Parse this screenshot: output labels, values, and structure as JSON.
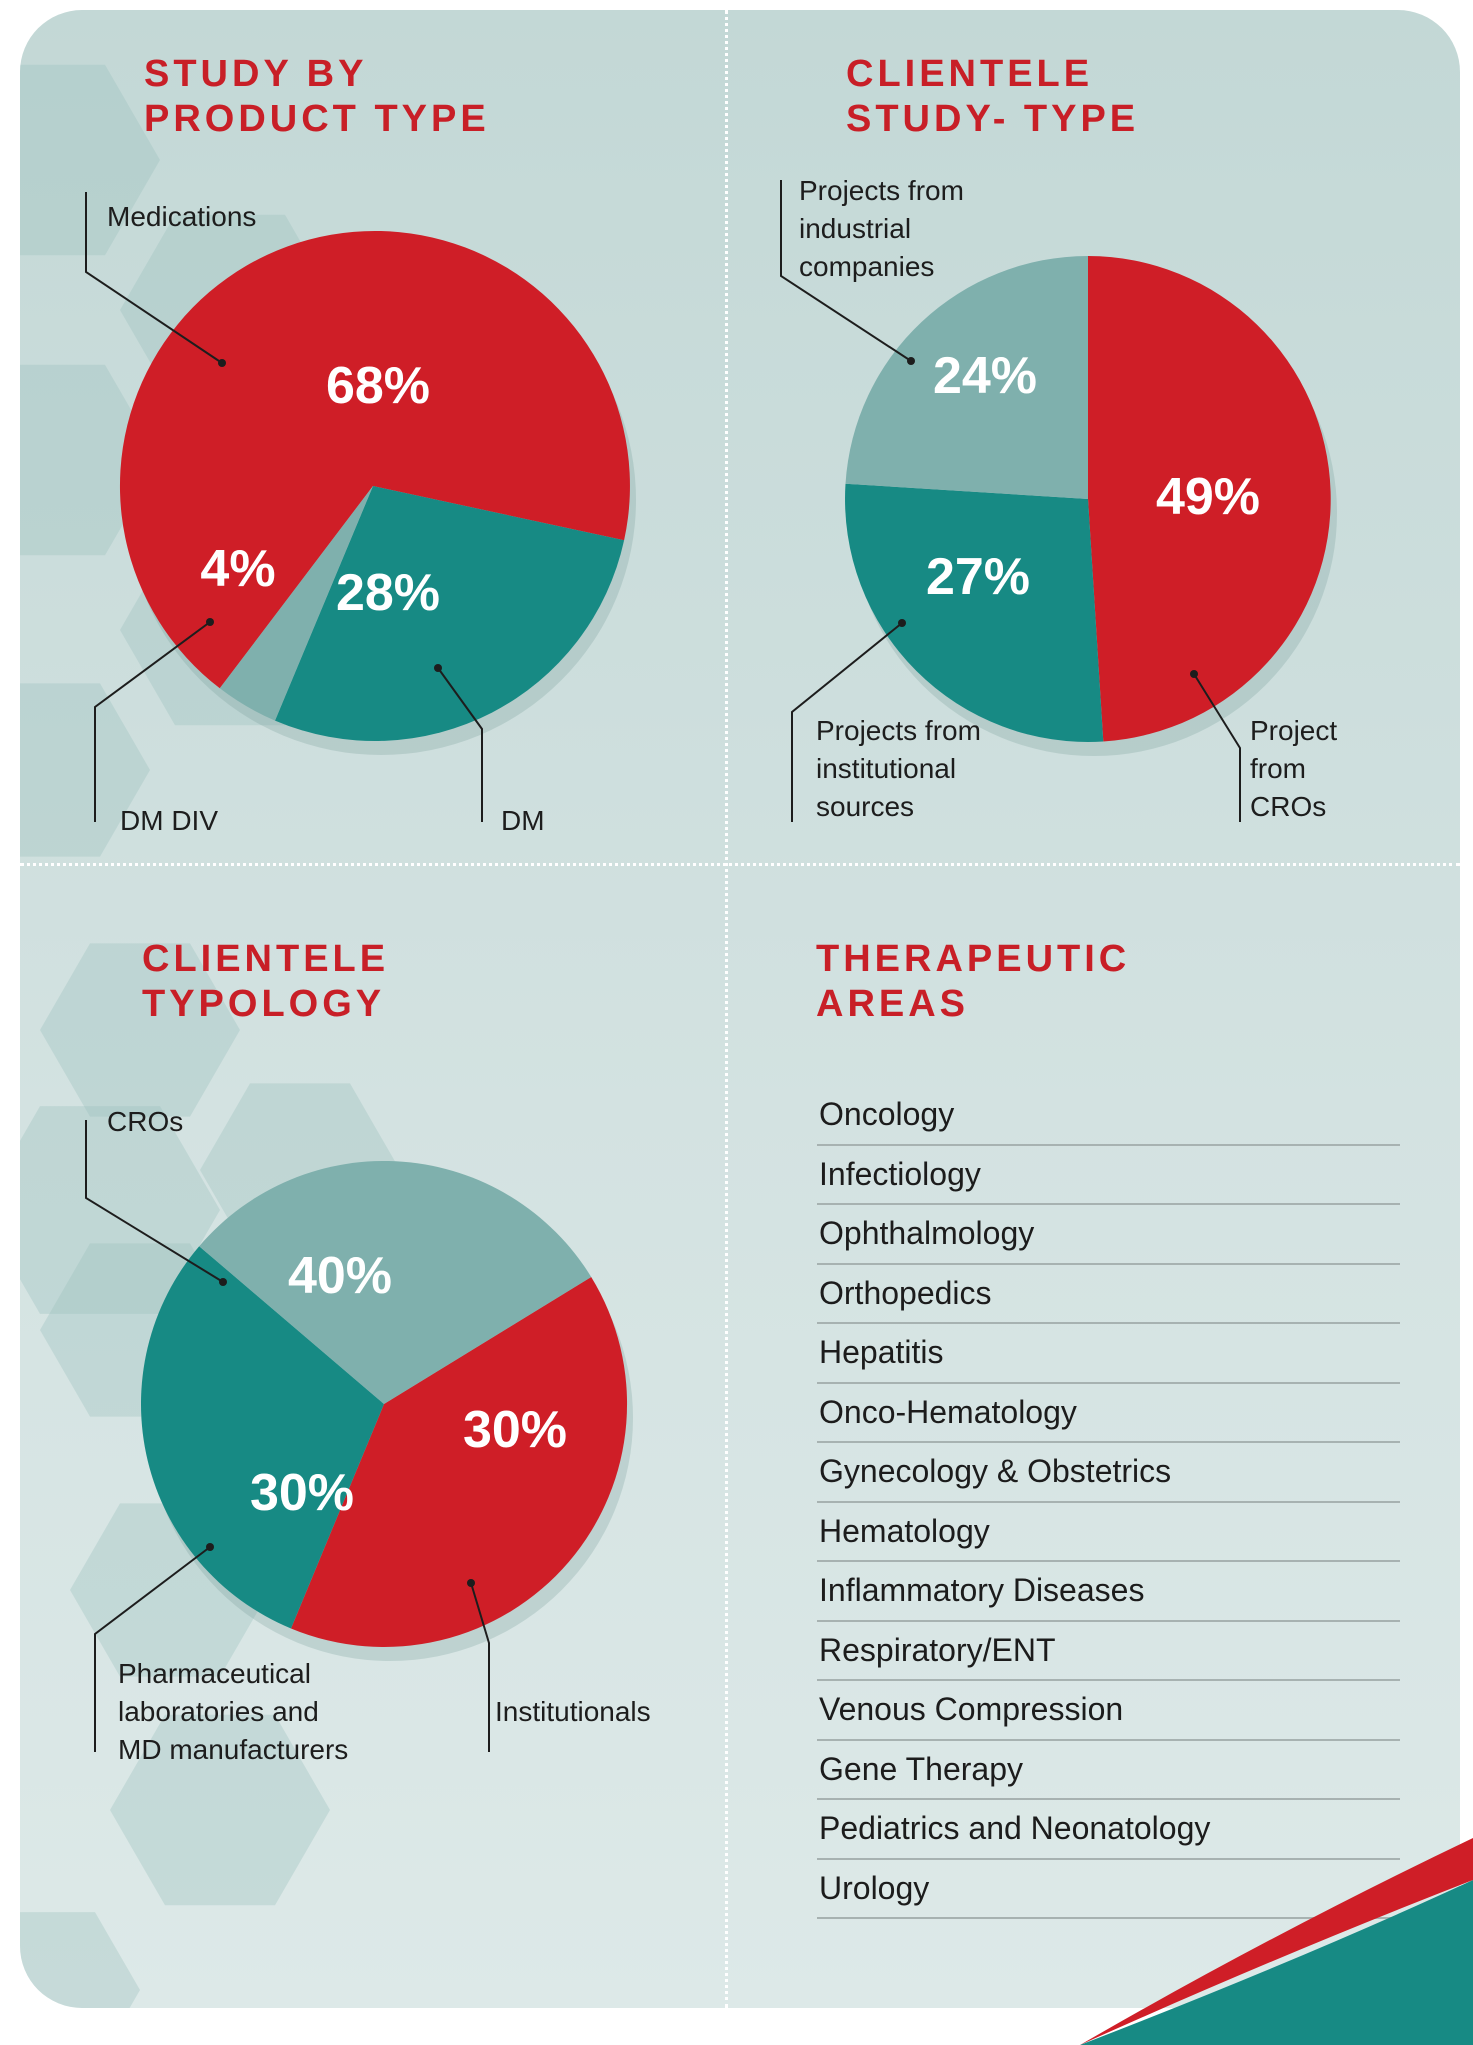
{
  "colors": {
    "red": "#cf1e27",
    "teal": "#178a84",
    "light_teal": "#7fb0ad",
    "title_red": "#c81f27"
  },
  "chart_data": [
    {
      "type": "pie",
      "title": "STUDY BY\nPRODUCT TYPE",
      "slices": [
        {
          "label": "Medications",
          "value": 68,
          "value_label": "68%",
          "color": "#cf1e27"
        },
        {
          "label": "DM",
          "value": 28,
          "value_label": "28%",
          "color": "#178a84"
        },
        {
          "label": "DM DIV",
          "value": 4,
          "value_label": "4%",
          "color": "#7fb0ad"
        }
      ]
    },
    {
      "type": "pie",
      "title": "CLIENTELE\nSTUDY- TYPE",
      "slices": [
        {
          "label": "Project\nfrom\nCROs",
          "value": 49,
          "value_label": "49%",
          "color": "#cf1e27"
        },
        {
          "label": "Projects from\ninstitutional\nsources",
          "value": 27,
          "value_label": "27%",
          "color": "#178a84"
        },
        {
          "label": "Projects from\nindustrial\ncompanies",
          "value": 24,
          "value_label": "24%",
          "color": "#7fb0ad"
        }
      ]
    },
    {
      "type": "pie",
      "title": "CLIENTELE\nTYPOLOGY",
      "slices": [
        {
          "label": "CROs",
          "value": 40,
          "value_label": "40%",
          "color": "#cf1e27"
        },
        {
          "label": "Institutionals",
          "value": 30,
          "value_label": "30%",
          "color": "#178a84"
        },
        {
          "label": "Pharmaceutical\nlaboratories and\nMD manufacturers",
          "value": 30,
          "value_label": "30%",
          "color": "#7fb0ad"
        }
      ]
    }
  ],
  "therapeutic": {
    "title": "THERAPEUTIC\n AREAS",
    "items": [
      "Oncology",
      "Infectiology",
      "Ophthalmology",
      "Orthopedics",
      "Hepatitis",
      "Onco-Hematology",
      "Gynecology & Obstetrics",
      "Hematology",
      "Inflammatory Diseases",
      "Respiratory/ENT",
      "Venous Compression",
      "Gene Therapy",
      "Pediatrics and Neonatology",
      "Urology"
    ]
  }
}
